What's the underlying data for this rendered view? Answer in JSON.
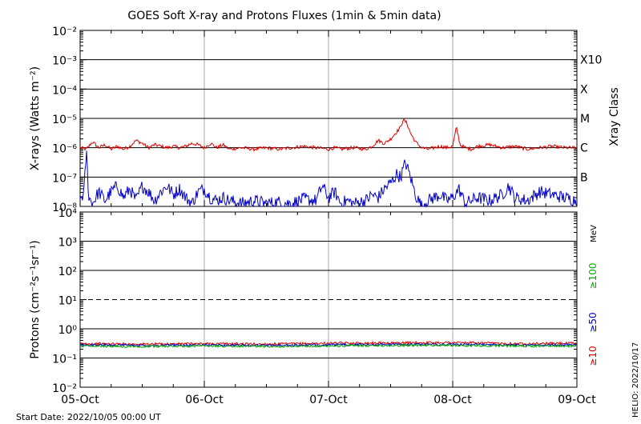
{
  "title": "GOES Soft X-ray and Protons Fluxes   (1min & 5min data)",
  "start_date": "Start Date: 2022/10/05 00:00 UT",
  "credit": "HELIO: 2022/10/17",
  "colors": {
    "xray_long": "#dd0000",
    "xray_short": "#0000cc",
    "proton_10": "#dd0000",
    "proton_50": "#0000cc",
    "proton_100": "#00aa00",
    "grid_major": "#000000",
    "grid_day": "#aaaaaa"
  },
  "chart_data": [
    {
      "type": "line",
      "panel": "xray",
      "ylabel": "X-rays (Watts m⁻²)",
      "y2label": "Xray Class",
      "yscale": "log",
      "ylim": [
        1e-08,
        0.01
      ],
      "y_ticks": [
        {
          "exp": -2,
          "label": "10⁻²"
        },
        {
          "exp": -3,
          "label": "10⁻³"
        },
        {
          "exp": -4,
          "label": "10⁻⁴"
        },
        {
          "exp": -5,
          "label": "10⁻⁵"
        },
        {
          "exp": -6,
          "label": "10⁻⁶"
        },
        {
          "exp": -7,
          "label": "10⁻⁷"
        },
        {
          "exp": -8,
          "label": "10⁻⁸"
        }
      ],
      "gridlines": [
        -3,
        -4,
        -5,
        -6,
        -7
      ],
      "class_labels": [
        {
          "exp": -3,
          "label": "X10"
        },
        {
          "exp": -4,
          "label": "X"
        },
        {
          "exp": -5,
          "label": "M"
        },
        {
          "exp": -6,
          "label": "C"
        },
        {
          "exp": -7,
          "label": "B"
        }
      ],
      "x_days": [
        "2022-10-05",
        "2022-10-06",
        "2022-10-07",
        "2022-10-08",
        "2022-10-09"
      ],
      "xlim_days": [
        0,
        4
      ],
      "series": [
        {
          "color_key": "xray_long",
          "points": [
            [
              0,
              -6.0
            ],
            [
              0.05,
              -6.05
            ],
            [
              0.1,
              -5.8
            ],
            [
              0.15,
              -6.0
            ],
            [
              0.2,
              -5.9
            ],
            [
              0.25,
              -6.05
            ],
            [
              0.3,
              -5.95
            ],
            [
              0.35,
              -6.05
            ],
            [
              0.4,
              -5.95
            ],
            [
              0.45,
              -5.75
            ],
            [
              0.5,
              -5.85
            ],
            [
              0.55,
              -6.0
            ],
            [
              0.6,
              -5.9
            ],
            [
              0.65,
              -5.95
            ],
            [
              0.7,
              -6.0
            ],
            [
              0.75,
              -5.95
            ],
            [
              0.8,
              -6.0
            ],
            [
              0.85,
              -5.95
            ],
            [
              0.9,
              -5.85
            ],
            [
              0.95,
              -5.9
            ],
            [
              1.0,
              -6.0
            ],
            [
              1.05,
              -5.85
            ],
            [
              1.1,
              -6.0
            ],
            [
              1.15,
              -5.9
            ],
            [
              1.2,
              -6.05
            ],
            [
              1.3,
              -6.0
            ],
            [
              1.4,
              -6.05
            ],
            [
              1.5,
              -6.0
            ],
            [
              1.6,
              -6.05
            ],
            [
              1.7,
              -6.0
            ],
            [
              1.8,
              -5.95
            ],
            [
              1.9,
              -6.0
            ],
            [
              2.0,
              -6.05
            ],
            [
              2.05,
              -6.0
            ],
            [
              2.1,
              -6.05
            ],
            [
              2.2,
              -6.0
            ],
            [
              2.3,
              -6.05
            ],
            [
              2.35,
              -5.95
            ],
            [
              2.4,
              -5.75
            ],
            [
              2.45,
              -5.85
            ],
            [
              2.5,
              -5.7
            ],
            [
              2.55,
              -5.45
            ],
            [
              2.58,
              -5.3
            ],
            [
              2.6,
              -5.05
            ],
            [
              2.63,
              -5.15
            ],
            [
              2.66,
              -5.5
            ],
            [
              2.7,
              -5.8
            ],
            [
              2.75,
              -6.0
            ],
            [
              2.8,
              -6.05
            ],
            [
              2.85,
              -6.0
            ],
            [
              2.9,
              -5.95
            ],
            [
              2.95,
              -6.0
            ],
            [
              3.0,
              -5.95
            ],
            [
              3.03,
              -5.3
            ],
            [
              3.06,
              -5.9
            ],
            [
              3.1,
              -6.0
            ],
            [
              3.15,
              -6.05
            ],
            [
              3.2,
              -5.95
            ],
            [
              3.3,
              -5.9
            ],
            [
              3.4,
              -6.0
            ],
            [
              3.5,
              -5.95
            ],
            [
              3.6,
              -6.05
            ],
            [
              3.7,
              -6.0
            ],
            [
              3.8,
              -5.95
            ],
            [
              3.9,
              -6.0
            ],
            [
              4.0,
              -6.0
            ]
          ]
        },
        {
          "color_key": "xray_short",
          "points": [
            [
              0,
              -7.7
            ],
            [
              0.03,
              -7.6
            ],
            [
              0.05,
              -6.1
            ],
            [
              0.07,
              -7.7
            ],
            [
              0.1,
              -7.9
            ],
            [
              0.15,
              -7.5
            ],
            [
              0.2,
              -7.8
            ],
            [
              0.25,
              -7.5
            ],
            [
              0.3,
              -7.3
            ],
            [
              0.35,
              -7.7
            ],
            [
              0.4,
              -7.4
            ],
            [
              0.45,
              -7.8
            ],
            [
              0.5,
              -7.3
            ],
            [
              0.55,
              -7.5
            ],
            [
              0.6,
              -7.8
            ],
            [
              0.65,
              -7.5
            ],
            [
              0.7,
              -7.3
            ],
            [
              0.75,
              -7.6
            ],
            [
              0.8,
              -7.4
            ],
            [
              0.85,
              -7.7
            ],
            [
              0.9,
              -7.9
            ],
            [
              0.95,
              -7.5
            ],
            [
              1.0,
              -7.4
            ],
            [
              1.05,
              -7.7
            ],
            [
              1.1,
              -7.8
            ],
            [
              1.15,
              -7.7
            ],
            [
              1.2,
              -7.8
            ],
            [
              1.3,
              -7.9
            ],
            [
              1.4,
              -7.8
            ],
            [
              1.5,
              -7.9
            ],
            [
              1.6,
              -7.85
            ],
            [
              1.7,
              -7.9
            ],
            [
              1.8,
              -7.75
            ],
            [
              1.9,
              -7.8
            ],
            [
              1.95,
              -7.3
            ],
            [
              2.0,
              -7.7
            ],
            [
              2.05,
              -7.5
            ],
            [
              2.1,
              -7.9
            ],
            [
              2.15,
              -7.8
            ],
            [
              2.2,
              -7.9
            ],
            [
              2.3,
              -7.8
            ],
            [
              2.35,
              -7.6
            ],
            [
              2.4,
              -7.7
            ],
            [
              2.45,
              -7.4
            ],
            [
              2.5,
              -7.2
            ],
            [
              2.55,
              -6.9
            ],
            [
              2.58,
              -7.0
            ],
            [
              2.62,
              -6.5
            ],
            [
              2.66,
              -7.0
            ],
            [
              2.7,
              -7.6
            ],
            [
              2.75,
              -8.0
            ],
            [
              2.8,
              -7.8
            ],
            [
              2.85,
              -7.7
            ],
            [
              2.9,
              -7.6
            ],
            [
              2.95,
              -7.8
            ],
            [
              3.0,
              -7.7
            ],
            [
              3.05,
              -7.4
            ],
            [
              3.1,
              -7.9
            ],
            [
              3.15,
              -7.8
            ],
            [
              3.2,
              -7.7
            ],
            [
              3.3,
              -7.8
            ],
            [
              3.4,
              -7.6
            ],
            [
              3.45,
              -7.3
            ],
            [
              3.5,
              -7.7
            ],
            [
              3.6,
              -7.8
            ],
            [
              3.7,
              -7.5
            ],
            [
              3.8,
              -7.6
            ],
            [
              3.9,
              -7.7
            ],
            [
              4.0,
              -7.8
            ]
          ]
        }
      ]
    },
    {
      "type": "line",
      "panel": "protons",
      "ylabel": "Protons (cm⁻²s⁻¹sr⁻¹)",
      "y2label": "MeV",
      "yscale": "log",
      "ylim": [
        0.01,
        10000
      ],
      "y_ticks": [
        {
          "exp": 4,
          "label": "10⁴"
        },
        {
          "exp": 3,
          "label": "10³"
        },
        {
          "exp": 2,
          "label": "10²"
        },
        {
          "exp": 1,
          "label": "10¹"
        },
        {
          "exp": 0,
          "label": "10⁰"
        },
        {
          "exp": -1,
          "label": "10⁻¹"
        },
        {
          "exp": -2,
          "label": "10⁻²"
        }
      ],
      "gridlines": [
        3,
        2,
        0,
        -1
      ],
      "threshold_exp": 1,
      "energy_labels": [
        {
          "label": "≥100",
          "color_key": "proton_100"
        },
        {
          "label": "≥50",
          "color_key": "proton_50"
        },
        {
          "label": "≥10",
          "color_key": "proton_10"
        }
      ],
      "x_labels": [
        "05-Oct",
        "06-Oct",
        "07-Oct",
        "08-Oct",
        "09-Oct"
      ],
      "xlim_days": [
        0,
        4
      ],
      "series": [
        {
          "name": "≥10 MeV",
          "color_key": "proton_10",
          "points": [
            [
              0,
              0.31
            ],
            [
              0.5,
              0.3
            ],
            [
              1,
              0.31
            ],
            [
              1.5,
              0.3
            ],
            [
              2,
              0.32
            ],
            [
              2.5,
              0.33
            ],
            [
              3,
              0.34
            ],
            [
              3.5,
              0.31
            ],
            [
              4,
              0.32
            ]
          ]
        },
        {
          "name": "≥50 MeV",
          "color_key": "proton_50",
          "points": [
            [
              0,
              0.28
            ],
            [
              0.5,
              0.27
            ],
            [
              1,
              0.28
            ],
            [
              1.5,
              0.27
            ],
            [
              2,
              0.28
            ],
            [
              2.5,
              0.29
            ],
            [
              3,
              0.29
            ],
            [
              3.5,
              0.28
            ],
            [
              4,
              0.28
            ]
          ]
        },
        {
          "name": "≥100 MeV",
          "color_key": "proton_100",
          "points": [
            [
              0,
              0.26
            ],
            [
              0.5,
              0.25
            ],
            [
              1,
              0.26
            ],
            [
              1.5,
              0.25
            ],
            [
              2,
              0.26
            ],
            [
              2.5,
              0.27
            ],
            [
              3,
              0.27
            ],
            [
              3.5,
              0.26
            ],
            [
              4,
              0.26
            ]
          ]
        }
      ]
    }
  ]
}
